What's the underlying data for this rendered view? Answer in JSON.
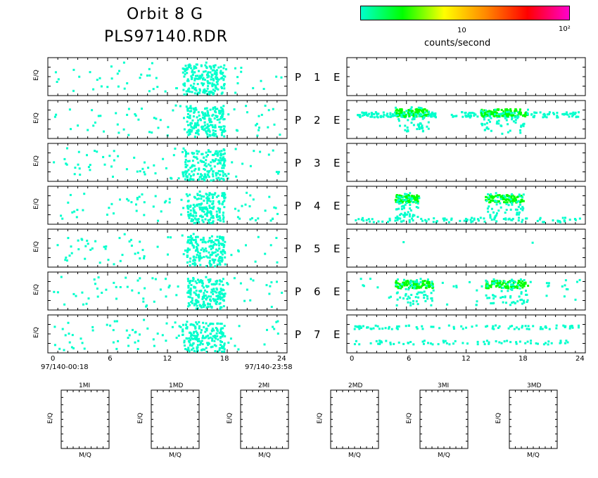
{
  "header": {
    "title_line1": "Orbit  8  G",
    "title_line2": "PLS97140.RDR"
  },
  "colorbar": {
    "label": "counts/second",
    "tick_10": "10",
    "tick_100": "10²",
    "colors": [
      "#00ffcc",
      "#00ff00",
      "#ffff00",
      "#ff8800",
      "#ff0000",
      "#ff00cc"
    ]
  },
  "axis_labels": {
    "ylabel": "E/Q",
    "mq_xlabel": "M/Q",
    "time_start": "97/140-00:18",
    "time_end": "97/140-23:58"
  },
  "panel_rows": [
    {
      "p": "P",
      "n": "1",
      "e": "E"
    },
    {
      "p": "P",
      "n": "2",
      "e": "E"
    },
    {
      "p": "P",
      "n": "3",
      "e": "E"
    },
    {
      "p": "P",
      "n": "4",
      "e": "E"
    },
    {
      "p": "P",
      "n": "5",
      "e": "E"
    },
    {
      "p": "P",
      "n": "6",
      "e": "E"
    },
    {
      "p": "P",
      "n": "7",
      "e": "E"
    }
  ],
  "mq_panels": [
    "1MI",
    "1MD",
    "2MI",
    "2MD",
    "3MI",
    "3MD"
  ],
  "chart_data": {
    "type": "heatmap",
    "title": "Orbit  8  G",
    "subtitle": "PLS97140.RDR",
    "x_ticks": [
      "0",
      "6",
      "12",
      "18",
      "24"
    ],
    "xlim": [
      0,
      24
    ],
    "ylabel": "E/Q",
    "color_scale": "counts/second (log, ~1 to 10²)",
    "colors": {
      "low": "#00ffcc",
      "mid": "#00ff00",
      "high": "#ffff00"
    },
    "left_panels": [
      {
        "name": "P 1",
        "activity": [
          [
            0,
            24,
            "sparse"
          ],
          [
            13.5,
            18,
            "dense"
          ]
        ]
      },
      {
        "name": "P 2",
        "activity": [
          [
            0,
            24,
            "sparse"
          ],
          [
            14,
            18,
            "dense"
          ]
        ]
      },
      {
        "name": "P 3",
        "activity": [
          [
            0,
            24,
            "sparse"
          ],
          [
            13.5,
            18,
            "dense"
          ]
        ]
      },
      {
        "name": "P 4",
        "activity": [
          [
            0,
            24,
            "sparse"
          ],
          [
            14,
            18,
            "dense"
          ]
        ]
      },
      {
        "name": "P 5",
        "activity": [
          [
            0,
            24,
            "sparse"
          ],
          [
            14,
            18,
            "dense"
          ]
        ]
      },
      {
        "name": "P 6",
        "activity": [
          [
            0,
            24,
            "sparse"
          ],
          [
            14,
            18,
            "dense"
          ]
        ]
      },
      {
        "name": "P 7",
        "activity": [
          [
            0,
            24,
            "sparse"
          ],
          [
            13.5,
            18,
            "dense"
          ]
        ]
      }
    ],
    "right_panels": [
      {
        "name": "E 1",
        "activity": []
      },
      {
        "name": "E 2",
        "activity": [
          [
            0.5,
            9,
            "band"
          ],
          [
            4.5,
            8,
            "high"
          ],
          [
            10,
            24,
            "band"
          ],
          [
            13.5,
            18.5,
            "high"
          ]
        ]
      },
      {
        "name": "E 3",
        "activity": []
      },
      {
        "name": "E 4",
        "activity": [
          [
            4.5,
            7,
            "high"
          ],
          [
            14,
            18,
            "high"
          ],
          [
            0,
            24,
            "low-band"
          ]
        ]
      },
      {
        "name": "E 5",
        "activity": [
          [
            5,
            5.5,
            "point"
          ],
          [
            18.5,
            19,
            "point"
          ]
        ]
      },
      {
        "name": "E 6",
        "activity": [
          [
            4.5,
            8.5,
            "high"
          ],
          [
            14,
            18.5,
            "high"
          ],
          [
            0,
            24,
            "sparse"
          ]
        ]
      },
      {
        "name": "E 7",
        "activity": [
          [
            0,
            24,
            "sparse-bands"
          ]
        ]
      }
    ]
  }
}
